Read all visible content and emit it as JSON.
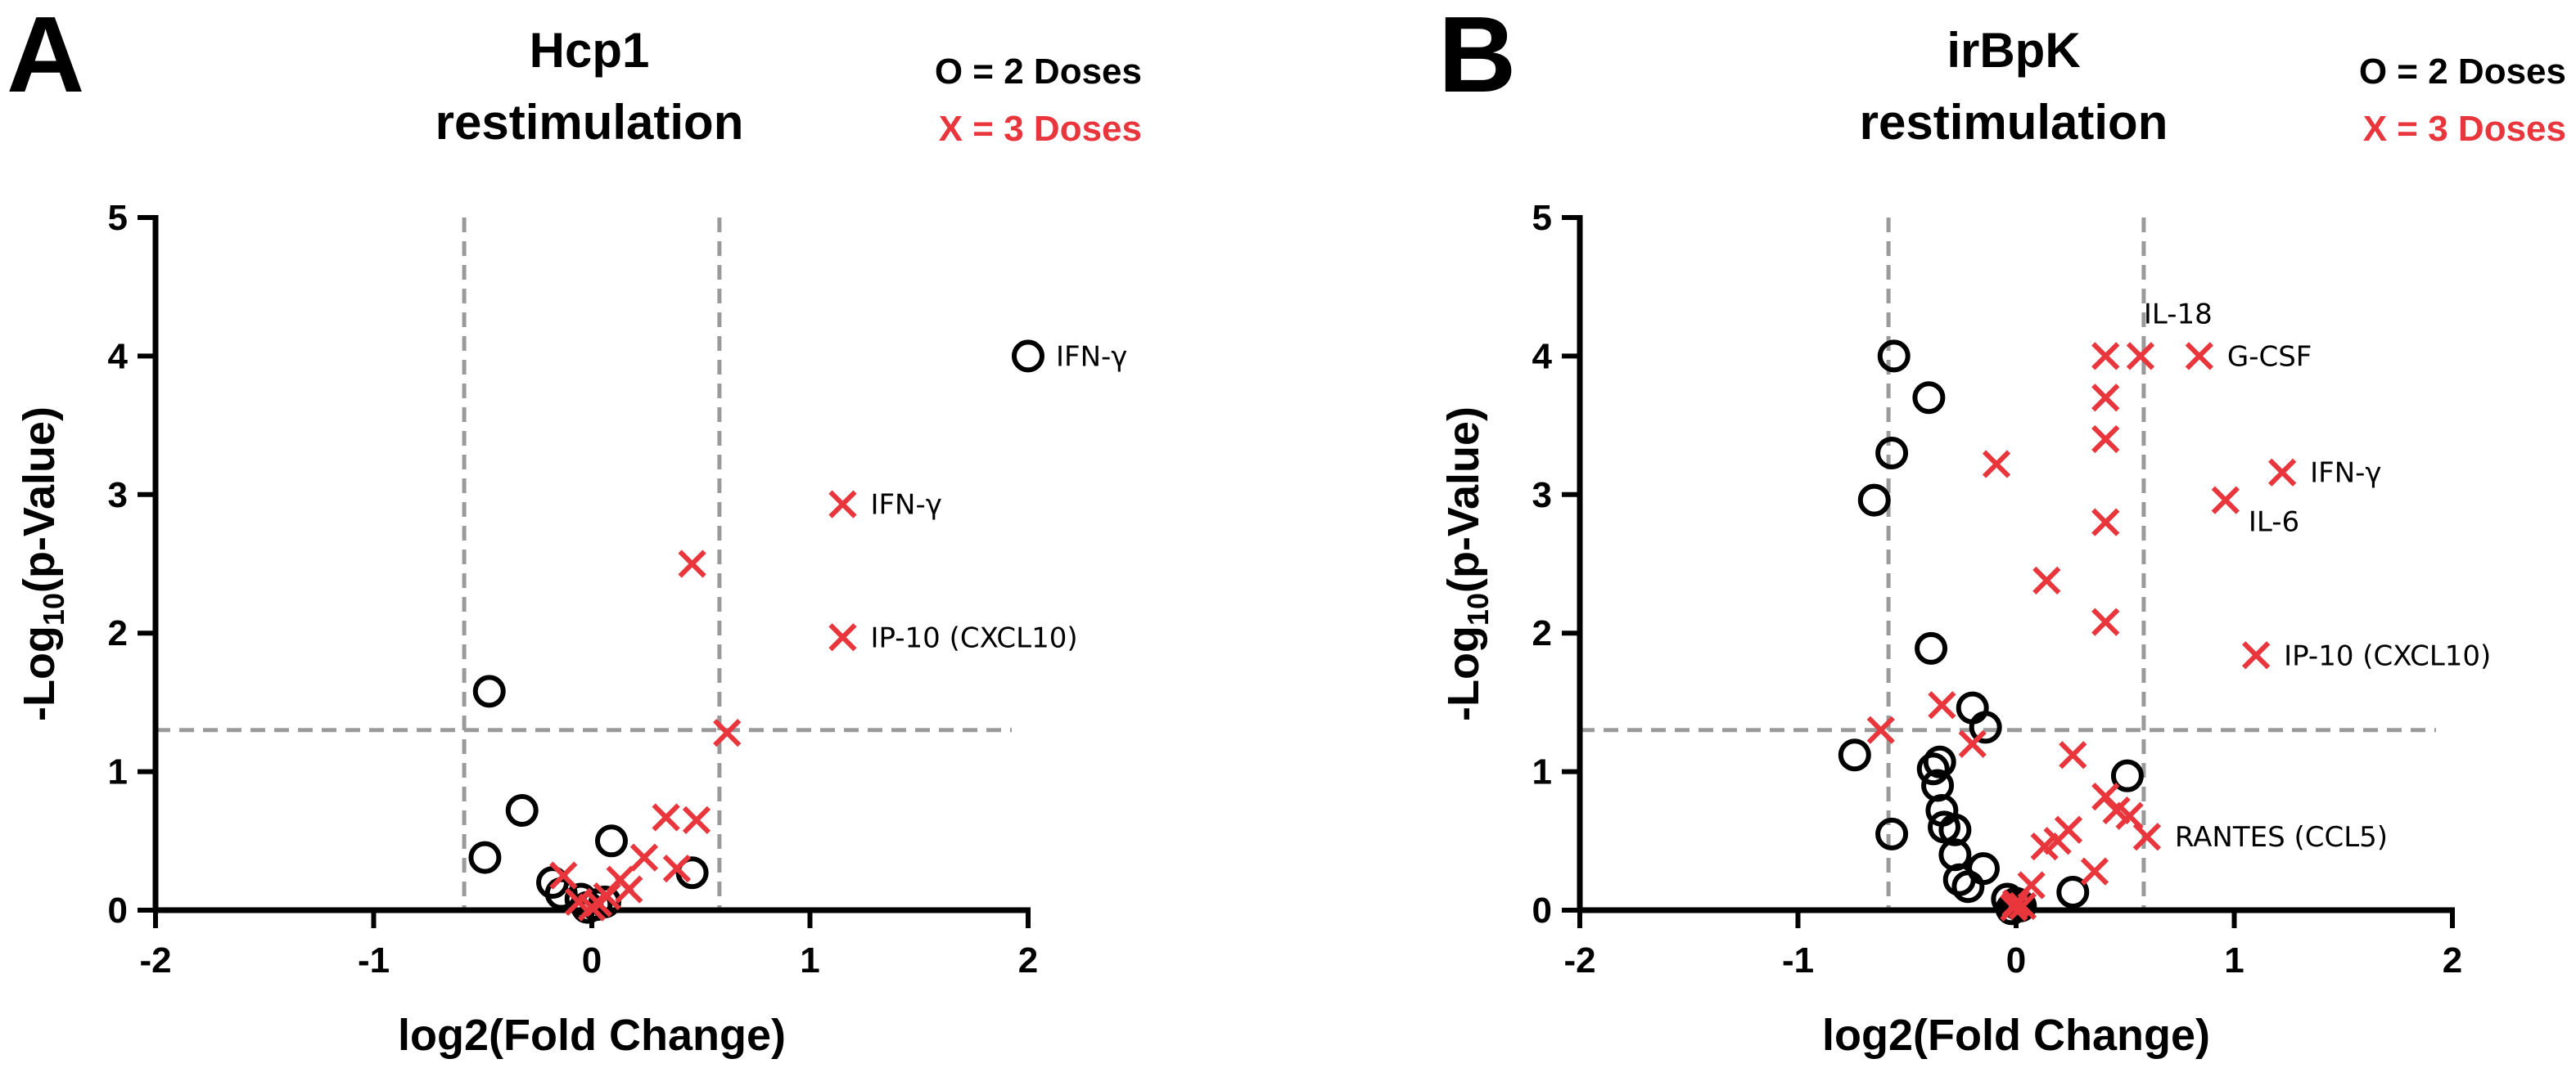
{
  "colors": {
    "two_doses": "#000000",
    "three_doses": "#e8363c",
    "threshold": "#9a9a9a"
  },
  "chart_data": [
    {
      "type": "scatter",
      "panel_label": "A",
      "title_line1": "Hcp1",
      "title_line2": "restimulation",
      "legend": {
        "two_doses": "O = 2 Doses",
        "three_doses": "X = 3 Doses"
      },
      "xlabel": "log2(Fold Change)",
      "ylabel_prefix": "-Log",
      "ylabel_sub": "10",
      "ylabel_suffix": "(p-Value)",
      "xlim": [
        -2,
        2
      ],
      "ylim": [
        0,
        5
      ],
      "xticks": [
        "-2",
        "-1",
        "0",
        "1",
        "2"
      ],
      "yticks": [
        "0",
        "1",
        "2",
        "3",
        "4",
        "5"
      ],
      "thresholds": {
        "fold_change": [
          -0.585,
          0.585
        ],
        "p_value_log": 1.3
      },
      "series": [
        {
          "name": "2 Doses",
          "marker": "circle",
          "points": [
            {
              "x": 2.0,
              "y": 4.0
            },
            {
              "x": -0.47,
              "y": 1.58
            },
            {
              "x": -0.32,
              "y": 0.72
            },
            {
              "x": -0.49,
              "y": 0.38
            },
            {
              "x": 0.09,
              "y": 0.5
            },
            {
              "x": 0.46,
              "y": 0.27
            },
            {
              "x": -0.18,
              "y": 0.2
            },
            {
              "x": -0.14,
              "y": 0.12
            },
            {
              "x": -0.05,
              "y": 0.08
            },
            {
              "x": 0.02,
              "y": 0.04
            },
            {
              "x": 0.06,
              "y": 0.06
            },
            {
              "x": -0.02,
              "y": 0.02
            }
          ]
        },
        {
          "name": "3 Doses",
          "marker": "x",
          "points": [
            {
              "x": 1.15,
              "y": 2.93
            },
            {
              "x": 1.15,
              "y": 1.97
            },
            {
              "x": 0.46,
              "y": 2.5
            },
            {
              "x": 0.62,
              "y": 1.28
            },
            {
              "x": 0.34,
              "y": 0.67
            },
            {
              "x": 0.48,
              "y": 0.65
            },
            {
              "x": 0.24,
              "y": 0.38
            },
            {
              "x": 0.39,
              "y": 0.3
            },
            {
              "x": -0.13,
              "y": 0.25
            },
            {
              "x": 0.13,
              "y": 0.22
            },
            {
              "x": 0.17,
              "y": 0.15
            },
            {
              "x": 0.07,
              "y": 0.1
            },
            {
              "x": -0.06,
              "y": 0.06
            },
            {
              "x": 0.0,
              "y": 0.02
            },
            {
              "x": 0.03,
              "y": 0.05
            }
          ]
        }
      ],
      "annotations": [
        {
          "text": "IFN-γ",
          "x": 2.0,
          "y": 4.0
        },
        {
          "text": "IFN-γ",
          "x": 1.15,
          "y": 2.93
        },
        {
          "text": "IP-10 (CXCL10)",
          "x": 1.15,
          "y": 1.97
        }
      ]
    },
    {
      "type": "scatter",
      "panel_label": "B",
      "title_line1": "irBpK",
      "title_line2": "restimulation",
      "legend": {
        "two_doses": "O = 2 Doses",
        "three_doses": "X = 3 Doses"
      },
      "xlabel": "log2(Fold Change)",
      "ylabel_prefix": "-Log",
      "ylabel_sub": "10",
      "ylabel_suffix": "(p-Value)",
      "xlim": [
        -2,
        2
      ],
      "ylim": [
        0,
        5
      ],
      "xticks": [
        "-2",
        "-1",
        "0",
        "1",
        "2"
      ],
      "yticks": [
        "0",
        "1",
        "2",
        "3",
        "4",
        "5"
      ],
      "thresholds": {
        "fold_change": [
          -0.585,
          0.585
        ],
        "p_value_log": 1.3
      },
      "series": [
        {
          "name": "2 Doses",
          "marker": "circle",
          "points": [
            {
              "x": -0.56,
              "y": 4.0
            },
            {
              "x": -0.4,
              "y": 3.7
            },
            {
              "x": -0.57,
              "y": 3.3
            },
            {
              "x": -0.65,
              "y": 2.96
            },
            {
              "x": -0.39,
              "y": 1.89
            },
            {
              "x": -0.2,
              "y": 1.46
            },
            {
              "x": -0.14,
              "y": 1.32
            },
            {
              "x": -0.74,
              "y": 1.12
            },
            {
              "x": -0.35,
              "y": 1.07
            },
            {
              "x": -0.38,
              "y": 1.02
            },
            {
              "x": -0.36,
              "y": 0.9
            },
            {
              "x": -0.34,
              "y": 0.72
            },
            {
              "x": -0.33,
              "y": 0.6
            },
            {
              "x": -0.28,
              "y": 0.58
            },
            {
              "x": -0.57,
              "y": 0.55
            },
            {
              "x": -0.28,
              "y": 0.4
            },
            {
              "x": -0.15,
              "y": 0.3
            },
            {
              "x": -0.26,
              "y": 0.22
            },
            {
              "x": -0.22,
              "y": 0.17
            },
            {
              "x": -0.04,
              "y": 0.08
            },
            {
              "x": 0.0,
              "y": 0.05
            },
            {
              "x": 0.02,
              "y": 0.03
            },
            {
              "x": 0.26,
              "y": 0.13
            },
            {
              "x": 0.51,
              "y": 0.97
            },
            {
              "x": -0.02,
              "y": 0.01
            }
          ]
        },
        {
          "name": "3 Doses",
          "marker": "x",
          "points": [
            {
              "x": 0.57,
              "y": 4.0
            },
            {
              "x": 0.84,
              "y": 4.0
            },
            {
              "x": 0.41,
              "y": 4.0
            },
            {
              "x": 0.41,
              "y": 3.7
            },
            {
              "x": 0.41,
              "y": 3.4
            },
            {
              "x": 1.22,
              "y": 3.16
            },
            {
              "x": 0.96,
              "y": 2.96
            },
            {
              "x": -0.09,
              "y": 3.22
            },
            {
              "x": 0.41,
              "y": 2.8
            },
            {
              "x": 0.14,
              "y": 2.38
            },
            {
              "x": 0.41,
              "y": 2.08
            },
            {
              "x": 1.1,
              "y": 1.84
            },
            {
              "x": -0.34,
              "y": 1.48
            },
            {
              "x": -0.62,
              "y": 1.3
            },
            {
              "x": -0.2,
              "y": 1.2
            },
            {
              "x": 0.26,
              "y": 1.12
            },
            {
              "x": 0.41,
              "y": 0.82
            },
            {
              "x": 0.46,
              "y": 0.72
            },
            {
              "x": 0.52,
              "y": 0.68
            },
            {
              "x": 0.6,
              "y": 0.53
            },
            {
              "x": 0.13,
              "y": 0.46
            },
            {
              "x": 0.19,
              "y": 0.5
            },
            {
              "x": 0.24,
              "y": 0.58
            },
            {
              "x": 0.36,
              "y": 0.28
            },
            {
              "x": 0.07,
              "y": 0.18
            },
            {
              "x": 0.0,
              "y": 0.05
            },
            {
              "x": 0.03,
              "y": 0.03
            },
            {
              "x": -0.01,
              "y": 0.02
            }
          ]
        }
      ],
      "annotations": [
        {
          "text": "IL-18",
          "x": 0.57,
          "y": 4.0,
          "position": "above"
        },
        {
          "text": "G-CSF",
          "x": 0.84,
          "y": 4.0
        },
        {
          "text": "IFN-γ",
          "x": 1.22,
          "y": 3.16
        },
        {
          "text": "IL-6",
          "x": 0.96,
          "y": 2.96,
          "position": "below"
        },
        {
          "text": "IP-10 (CXCL10)",
          "x": 1.1,
          "y": 1.84
        },
        {
          "text": "RANTES (CCL5)",
          "x": 0.6,
          "y": 0.53
        }
      ]
    }
  ]
}
